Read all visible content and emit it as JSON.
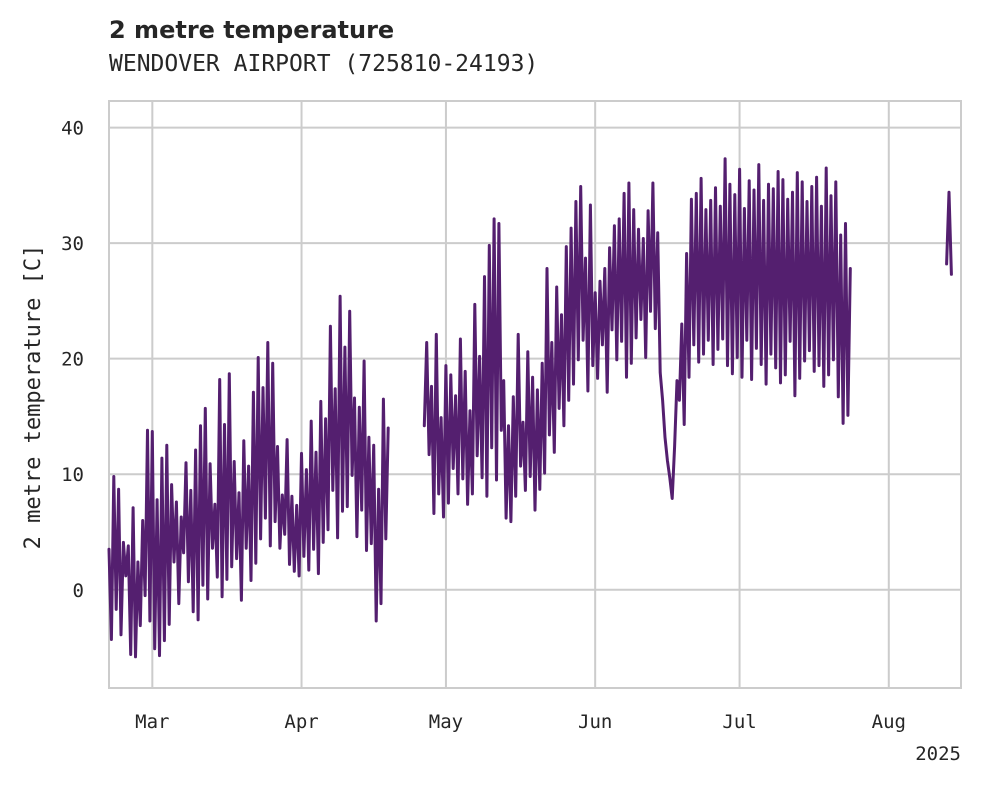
{
  "chart_data": {
    "type": "line",
    "title": "2 metre temperature",
    "subtitle": "WENDOVER AIRPORT (725810-24193)",
    "xlabel": "",
    "ylabel": "2 metre temperature [C]",
    "x_year_label": "2025",
    "xlim": [
      "2025-02-20",
      "2025-08-16"
    ],
    "ylim": [
      -8.5,
      42.3
    ],
    "x_ticks": [
      {
        "date": "2025-03-01",
        "label": "Mar"
      },
      {
        "date": "2025-04-01",
        "label": "Apr"
      },
      {
        "date": "2025-05-01",
        "label": "May"
      },
      {
        "date": "2025-06-01",
        "label": "Jun"
      },
      {
        "date": "2025-07-01",
        "label": "Jul"
      },
      {
        "date": "2025-08-01",
        "label": "Aug"
      }
    ],
    "y_ticks": [
      0,
      10,
      20,
      30,
      40
    ],
    "grid": true,
    "line_color": "#541f6f",
    "grid_color": "#cccccc",
    "series": [
      {
        "segments": [
          {
            "start": "2025-02-20T00:00",
            "step_hours": 12,
            "values": [
              3.5,
              -4.3,
              9.8,
              -1.7,
              8.7,
              -3.9,
              4.1,
              1.2,
              3.8,
              -5.6,
              7.1,
              -5.8,
              2.4,
              -3.1,
              6.0,
              -0.5,
              13.8,
              -2.7,
              13.7,
              -5.1,
              7.8,
              -5.7,
              11.4,
              -4.4,
              12.5,
              -3.0,
              9.1,
              2.4,
              7.6,
              -1.2,
              6.3,
              3.2,
              11.0,
              0.7,
              8.6,
              -1.9,
              12.1,
              -2.6,
              14.2,
              0.4,
              15.7,
              -0.8,
              10.9,
              3.6,
              7.4,
              1.1,
              18.2,
              -0.6,
              14.3,
              0.9,
              18.7,
              2.0,
              11.1,
              2.7,
              8.4,
              -0.9,
              12.9,
              3.6,
              10.7,
              0.8,
              17.1,
              2.3,
              20.1,
              4.4,
              17.5,
              6.2,
              21.4,
              3.8,
              19.6,
              5.9,
              12.4,
              3.6,
              8.2,
              4.8,
              13.0,
              2.2,
              8.1,
              1.6,
              7.3,
              1.2,
              11.8,
              2.9,
              10.4,
              1.7,
              14.6,
              3.5,
              11.9,
              1.4,
              16.3,
              4.1,
              14.8,
              5.2,
              22.8,
              8.6,
              17.4,
              4.5,
              25.4,
              6.8,
              21.0,
              7.2,
              24.1,
              9.9,
              16.6,
              4.6,
              15.8,
              6.9,
              19.8,
              3.4,
              13.2,
              4.0,
              12.5,
              -2.7,
              8.7,
              -1.2,
              16.5,
              4.4,
              14.0
            ]
          },
          {
            "start": "2025-04-26T12:00",
            "step_hours": 12,
            "values": [
              14.2,
              21.4,
              11.7,
              17.6,
              6.6,
              22.1,
              8.3,
              14.9,
              6.3,
              19.4,
              7.5,
              18.6,
              10.5,
              16.8,
              8.3,
              21.7,
              9.6,
              18.9,
              7.4,
              15.5,
              8.3,
              24.7,
              11.6,
              20.2,
              9.7,
              27.1,
              8.1,
              29.8,
              12.3,
              32.1,
              9.5,
              31.7,
              13.8,
              18.1,
              6.2,
              14.2,
              5.9,
              16.7,
              8.1,
              22.1,
              10.7,
              14.5,
              8.6,
              20.6,
              9.8,
              18.4,
              6.9,
              17.3,
              8.7,
              19.6,
              10.1,
              27.8,
              13.4,
              21.4,
              11.9,
              26.2,
              15.7,
              23.8,
              14.2,
              29.7,
              16.4,
              31.3,
              17.8,
              33.6,
              19.9,
              34.9,
              21.6,
              28.7,
              17.2,
              33.3,
              19.4,
              25.7,
              18.3,
              26.7,
              21.2,
              27.8,
              17.1,
              29.6,
              22.5,
              31.5,
              19.9,
              32.1,
              21.5,
              34.3,
              18.4,
              35.2,
              19.6,
              32.9,
              21.8,
              31.2,
              23.4,
              30.4,
              20.1,
              32.8,
              24.1,
              35.2,
              22.6,
              30.9,
              18.8,
              16.4,
              13.2,
              11.2,
              9.7,
              7.9,
              12.4,
              18.1,
              16.4,
              23.0,
              14.3,
              29.1,
              18.4,
              33.8,
              21.2,
              34.3,
              19.7,
              35.6,
              20.4,
              32.9,
              21.6,
              33.7,
              19.5,
              34.8,
              20.8,
              33.2,
              21.7,
              37.3,
              19.4,
              35.1,
              18.7,
              34.2,
              20.1,
              36.4,
              18.4,
              33.0,
              21.6,
              35.4,
              18.2,
              34.6,
              20.9,
              36.8,
              19.5,
              33.7,
              17.8,
              35.1,
              20.4,
              34.7,
              19.2,
              36.2,
              17.9,
              35.5,
              18.6,
              33.8,
              21.5,
              34.4,
              16.8,
              36.1,
              18.3,
              35.3,
              19.8,
              33.6,
              20.7,
              34.9,
              18.9,
              35.7,
              19.4,
              33.2,
              17.6,
              36.5,
              18.6,
              34.1,
              19.9,
              35.3,
              16.7,
              30.7,
              14.4,
              31.7,
              15.1,
              27.8
            ]
          },
          {
            "start": "2025-08-13T00:00",
            "step_hours": 12,
            "values": [
              28.2,
              34.4,
              27.3
            ]
          }
        ]
      }
    ]
  }
}
